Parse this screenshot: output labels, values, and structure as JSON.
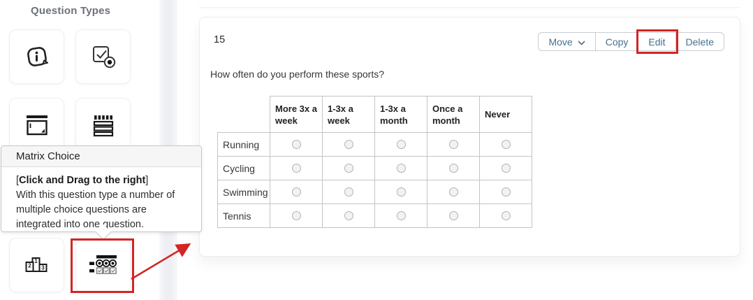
{
  "sidebar": {
    "title": "Question Types",
    "icons": [
      "info-icon",
      "multiple-choice-icon",
      "open-text-icon",
      "list-icon",
      "ranking-icon",
      "matrix-choice-icon"
    ]
  },
  "tooltip": {
    "title": "Matrix Choice",
    "instruction_prefix": "[",
    "instruction": "Click and Drag to the right",
    "instruction_suffix": "]",
    "body": "With this question type a number of multiple choice questions are integrated into one question."
  },
  "question": {
    "number": "15",
    "text": "How often do you perform these sports?"
  },
  "toolbar": {
    "move_label": "Move",
    "copy_label": "Copy",
    "edit_label": "Edit",
    "delete_label": "Delete"
  },
  "matrix": {
    "columns": [
      "More 3x a week",
      "1-3x a week",
      "1-3x a month",
      "Once a month",
      "Never"
    ],
    "rows": [
      "Running",
      "Cycling",
      "Swimming",
      "Tennis"
    ]
  },
  "colors": {
    "accent_blue": "#45708e",
    "annotation_red": "#d32525",
    "table_border": "#c4c4c4"
  }
}
